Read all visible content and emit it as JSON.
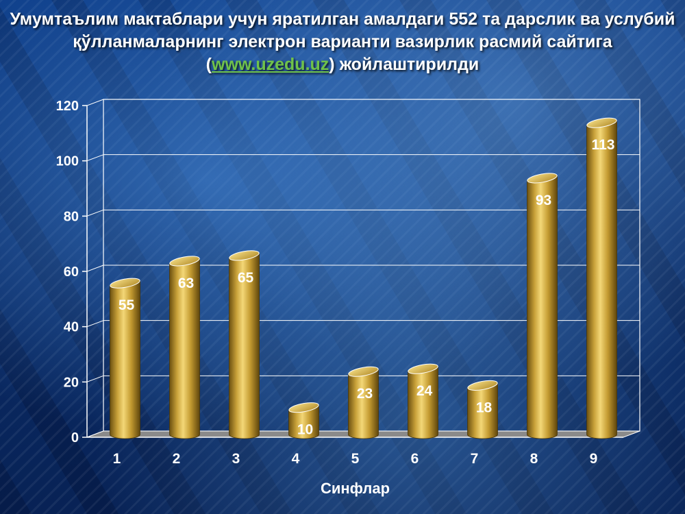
{
  "title": {
    "before": "Умумтаълим мактаблари учун яратилган амалдаги 552 та дарслик ва услубий қўлланмаларнинг электрон варианти вазирлик расмий сайтига (",
    "link": "www.uzedu.uz",
    "after": ") жойлаштирилди"
  },
  "colors": {
    "bar": "#c8a23a",
    "bar_light": "#f0d36a",
    "bar_dark": "#7a5e12",
    "link": "#6fc24a",
    "grid": "#ffffff"
  },
  "chart_data": {
    "type": "bar",
    "categories": [
      "1",
      "2",
      "3",
      "4",
      "5",
      "6",
      "7",
      "8",
      "9"
    ],
    "values": [
      55,
      63,
      65,
      10,
      23,
      24,
      18,
      93,
      113
    ],
    "xlabel": "Синфлар",
    "ylabel": "",
    "ylim": [
      0,
      120
    ],
    "yticks": [
      0,
      20,
      40,
      60,
      80,
      100,
      120
    ],
    "grid": true,
    "legend": "none",
    "style": "3d-cylinder"
  }
}
